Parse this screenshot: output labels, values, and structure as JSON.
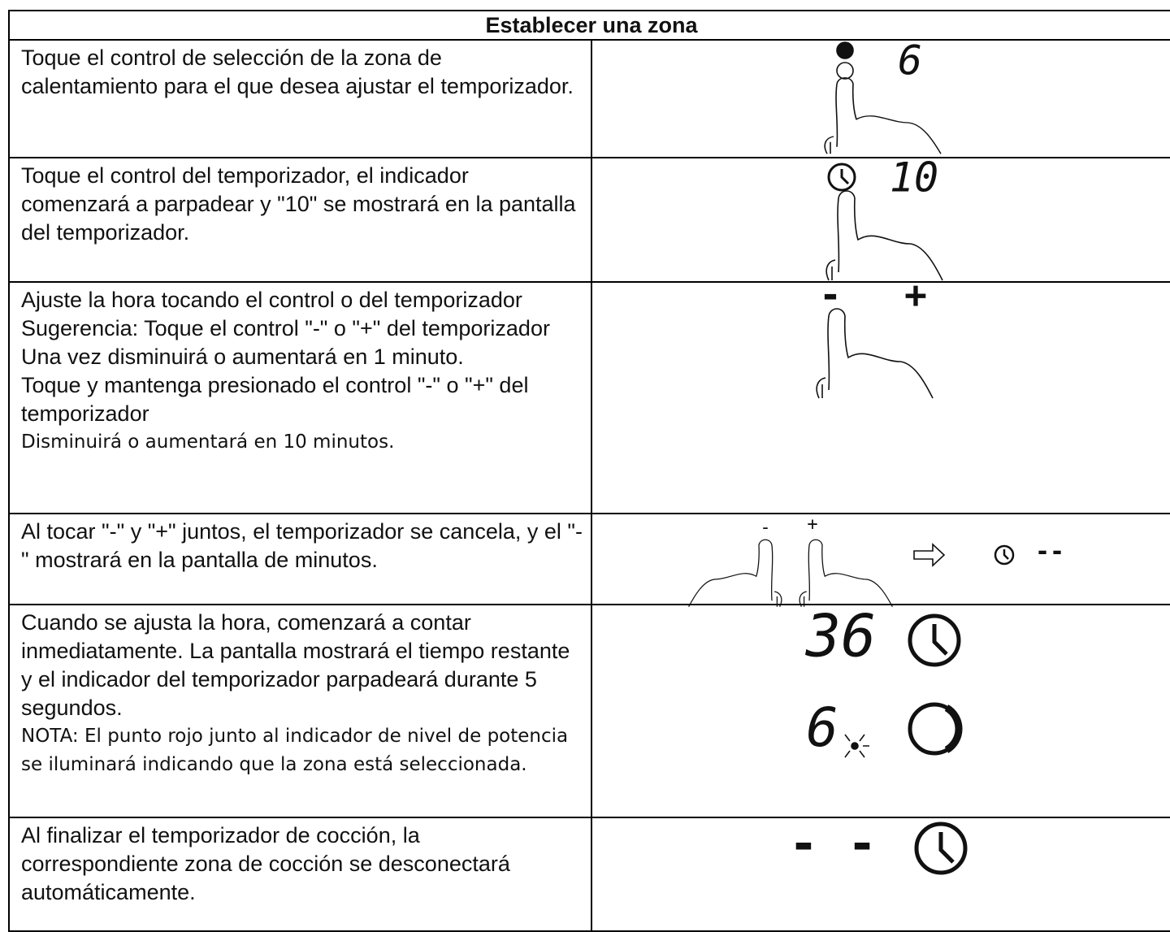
{
  "title": "Establecer una zona",
  "rows": [
    {
      "text": [
        "Toque el control de selección de la zona de calentamiento para el que desea ajustar el temporizador."
      ],
      "display": [
        "6"
      ]
    },
    {
      "text": [
        "Toque el control del temporizador, el indicador comenzará a parpadear y \"10\" se mostrará en la pantalla del temporizador."
      ],
      "display": [
        "10"
      ]
    },
    {
      "text": [
        "Ajuste la hora tocando el control o del temporizador",
        "Sugerencia: Toque el control \"-\" o \"+\" del temporizador",
        "Una vez disminuirá o aumentará en 1 minuto.",
        "Toque y mantenga presionado el control \"-\" o \"+\" del temporizador",
        "Disminuirá o aumentará en 10 minutos."
      ],
      "display": [
        "-",
        "+"
      ]
    },
    {
      "text": [
        "Al tocar \"-\" y \"+\" juntos, el temporizador se cancela, y el \"-\" mostrará en la pantalla de minutos."
      ],
      "display": [
        "-",
        "+",
        "--"
      ]
    },
    {
      "text": [
        "Cuando se ajusta la hora, comenzará a contar inmediatamente. La pantalla mostrará el tiempo restante y el indicador del temporizador parpadeará durante 5 segundos.",
        "NOTA: El punto rojo junto al indicador de nivel de potencia se iluminará indicando que la zona está seleccionada."
      ],
      "display": [
        "36",
        "6"
      ]
    },
    {
      "text": [
        "Al finalizar el temporizador de cocción, la correspondiente zona de cocción se desconectará automáticamente."
      ],
      "display": [
        "- -"
      ]
    }
  ]
}
